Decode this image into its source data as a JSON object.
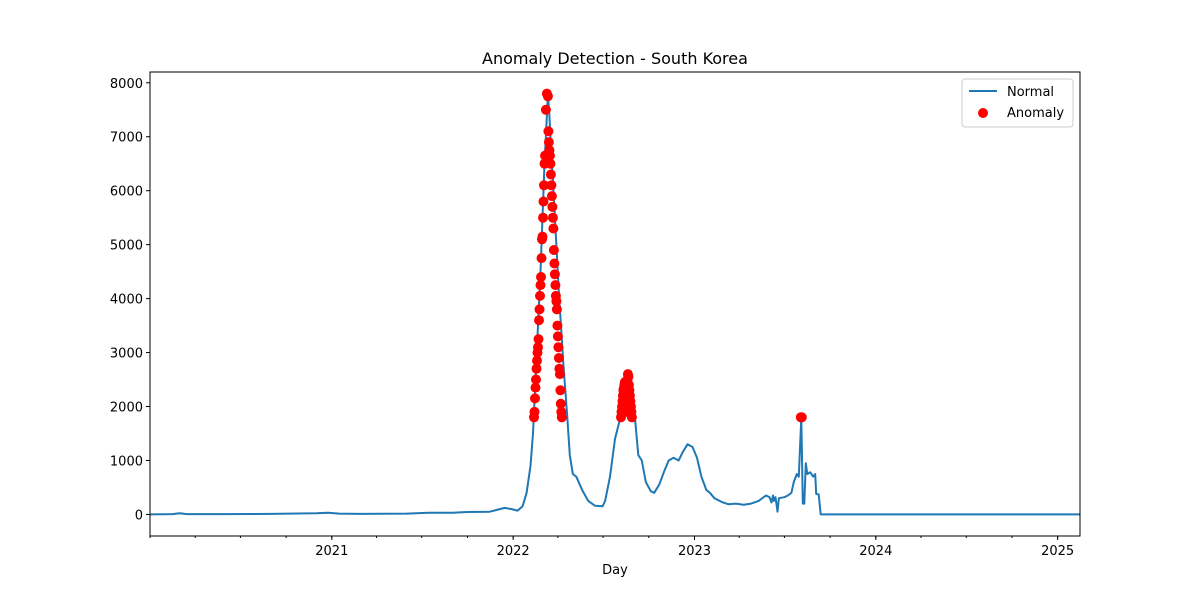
{
  "chart_data": {
    "type": "line",
    "title": "Anomaly Detection - South Korea",
    "xlabel": "Day",
    "ylabel": "",
    "xlim": [
      "2020-01-01",
      "2025-02-15"
    ],
    "ylim": [
      -400,
      8200
    ],
    "yticks": [
      0,
      1000,
      2000,
      3000,
      4000,
      5000,
      6000,
      7000,
      8000
    ],
    "xticks": [
      {
        "date": "2021-01-01",
        "label": "2021"
      },
      {
        "date": "2022-01-01",
        "label": "2022"
      },
      {
        "date": "2023-01-01",
        "label": "2023"
      },
      {
        "date": "2024-01-01",
        "label": "2024"
      },
      {
        "date": "2025-01-01",
        "label": "2025"
      }
    ],
    "legend_position": "top-right",
    "colors": {
      "normal": "#1f77b4",
      "anomaly": "#ff0000"
    },
    "series": [
      {
        "name": "Normal",
        "kind": "line",
        "points": [
          [
            "2020-01-01",
            0
          ],
          [
            "2020-02-15",
            5
          ],
          [
            "2020-03-01",
            20
          ],
          [
            "2020-03-15",
            5
          ],
          [
            "2020-06-01",
            5
          ],
          [
            "2020-09-01",
            10
          ],
          [
            "2020-12-01",
            20
          ],
          [
            "2020-12-25",
            30
          ],
          [
            "2021-01-15",
            15
          ],
          [
            "2021-03-01",
            10
          ],
          [
            "2021-06-01",
            15
          ],
          [
            "2021-07-15",
            30
          ],
          [
            "2021-09-01",
            30
          ],
          [
            "2021-10-01",
            45
          ],
          [
            "2021-11-15",
            50
          ],
          [
            "2021-12-01",
            90
          ],
          [
            "2021-12-15",
            120
          ],
          [
            "2021-12-28",
            100
          ],
          [
            "2022-01-10",
            70
          ],
          [
            "2022-01-20",
            150
          ],
          [
            "2022-01-28",
            400
          ],
          [
            "2022-02-05",
            900
          ],
          [
            "2022-02-10",
            1500
          ],
          [
            "2022-02-15",
            2500
          ],
          [
            "2022-02-20",
            3500
          ],
          [
            "2022-02-25",
            4500
          ],
          [
            "2022-03-01",
            5500
          ],
          [
            "2022-03-05",
            6500
          ],
          [
            "2022-03-09",
            7200
          ],
          [
            "2022-03-12",
            7800
          ],
          [
            "2022-03-15",
            7400
          ],
          [
            "2022-03-18",
            6800
          ],
          [
            "2022-03-22",
            6200
          ],
          [
            "2022-03-26",
            5500
          ],
          [
            "2022-03-30",
            4800
          ],
          [
            "2022-04-03",
            4100
          ],
          [
            "2022-04-08",
            3400
          ],
          [
            "2022-04-12",
            2800
          ],
          [
            "2022-04-16",
            2300
          ],
          [
            "2022-04-20",
            1800
          ],
          [
            "2022-04-25",
            1100
          ],
          [
            "2022-05-01",
            750
          ],
          [
            "2022-05-08",
            700
          ],
          [
            "2022-05-20",
            450
          ],
          [
            "2022-06-01",
            250
          ],
          [
            "2022-06-15",
            160
          ],
          [
            "2022-06-30",
            150
          ],
          [
            "2022-07-05",
            250
          ],
          [
            "2022-07-15",
            700
          ],
          [
            "2022-07-25",
            1400
          ],
          [
            "2022-08-05",
            1800
          ],
          [
            "2022-08-12",
            2200
          ],
          [
            "2022-08-18",
            2450
          ],
          [
            "2022-08-22",
            2500
          ],
          [
            "2022-08-28",
            2200
          ],
          [
            "2022-09-03",
            1800
          ],
          [
            "2022-09-10",
            1100
          ],
          [
            "2022-09-17",
            1000
          ],
          [
            "2022-09-25",
            600
          ],
          [
            "2022-10-05",
            430
          ],
          [
            "2022-10-12",
            400
          ],
          [
            "2022-10-22",
            550
          ],
          [
            "2022-11-01",
            800
          ],
          [
            "2022-11-10",
            1000
          ],
          [
            "2022-11-20",
            1050
          ],
          [
            "2022-11-30",
            1000
          ],
          [
            "2022-12-08",
            1150
          ],
          [
            "2022-12-18",
            1300
          ],
          [
            "2022-12-28",
            1250
          ],
          [
            "2023-01-06",
            1050
          ],
          [
            "2023-01-15",
            700
          ],
          [
            "2023-01-25",
            450
          ],
          [
            "2023-02-01",
            400
          ],
          [
            "2023-02-10",
            300
          ],
          [
            "2023-02-25",
            230
          ],
          [
            "2023-03-10",
            190
          ],
          [
            "2023-03-25",
            200
          ],
          [
            "2023-04-10",
            180
          ],
          [
            "2023-04-25",
            200
          ],
          [
            "2023-05-10",
            250
          ],
          [
            "2023-05-25",
            350
          ],
          [
            "2023-06-01",
            320
          ],
          [
            "2023-06-05",
            220
          ],
          [
            "2023-06-08",
            350
          ],
          [
            "2023-06-10",
            250
          ],
          [
            "2023-06-13",
            320
          ],
          [
            "2023-06-17",
            50
          ],
          [
            "2023-06-20",
            300
          ],
          [
            "2023-07-01",
            320
          ],
          [
            "2023-07-08",
            350
          ],
          [
            "2023-07-15",
            400
          ],
          [
            "2023-07-20",
            600
          ],
          [
            "2023-07-26",
            750
          ],
          [
            "2023-07-30",
            700
          ],
          [
            "2023-08-04",
            1800
          ],
          [
            "2023-08-07",
            200
          ],
          [
            "2023-08-10",
            200
          ],
          [
            "2023-08-13",
            950
          ],
          [
            "2023-08-16",
            750
          ],
          [
            "2023-08-22",
            780
          ],
          [
            "2023-08-28",
            700
          ],
          [
            "2023-09-01",
            750
          ],
          [
            "2023-09-03",
            380
          ],
          [
            "2023-09-08",
            370
          ],
          [
            "2023-09-12",
            0
          ],
          [
            "2024-01-01",
            0
          ],
          [
            "2025-02-15",
            0
          ]
        ]
      },
      {
        "name": "Anomaly",
        "kind": "scatter",
        "points": [
          [
            "2022-02-12",
            1800
          ],
          [
            "2022-02-13",
            1900
          ],
          [
            "2022-02-14",
            2150
          ],
          [
            "2022-02-15",
            2350
          ],
          [
            "2022-02-16",
            2500
          ],
          [
            "2022-02-17",
            2700
          ],
          [
            "2022-02-18",
            2850
          ],
          [
            "2022-02-19",
            3000
          ],
          [
            "2022-02-20",
            3100
          ],
          [
            "2022-02-21",
            3250
          ],
          [
            "2022-02-22",
            3600
          ],
          [
            "2022-02-23",
            3800
          ],
          [
            "2022-02-24",
            4050
          ],
          [
            "2022-02-25",
            4250
          ],
          [
            "2022-02-26",
            4400
          ],
          [
            "2022-02-27",
            4750
          ],
          [
            "2022-02-28",
            5100
          ],
          [
            "2022-03-01",
            5150
          ],
          [
            "2022-03-02",
            5500
          ],
          [
            "2022-03-03",
            5800
          ],
          [
            "2022-03-04",
            6100
          ],
          [
            "2022-03-05",
            6500
          ],
          [
            "2022-03-06",
            6650
          ],
          [
            "2022-03-08",
            7500
          ],
          [
            "2022-03-10",
            7800
          ],
          [
            "2022-03-12",
            7750
          ],
          [
            "2022-03-13",
            7100
          ],
          [
            "2022-03-14",
            6900
          ],
          [
            "2022-03-15",
            6750
          ],
          [
            "2022-03-16",
            6650
          ],
          [
            "2022-03-17",
            6500
          ],
          [
            "2022-03-18",
            6300
          ],
          [
            "2022-03-19",
            6100
          ],
          [
            "2022-03-20",
            5900
          ],
          [
            "2022-03-21",
            5700
          ],
          [
            "2022-03-22",
            5500
          ],
          [
            "2022-03-23",
            5300
          ],
          [
            "2022-03-24",
            4900
          ],
          [
            "2022-03-25",
            4650
          ],
          [
            "2022-03-26",
            4450
          ],
          [
            "2022-03-27",
            4250
          ],
          [
            "2022-03-28",
            4050
          ],
          [
            "2022-03-29",
            3950
          ],
          [
            "2022-03-30",
            3800
          ],
          [
            "2022-03-31",
            3500
          ],
          [
            "2022-04-01",
            3300
          ],
          [
            "2022-04-02",
            3100
          ],
          [
            "2022-04-03",
            2900
          ],
          [
            "2022-04-04",
            2700
          ],
          [
            "2022-04-05",
            2600
          ],
          [
            "2022-04-06",
            2300
          ],
          [
            "2022-04-07",
            2050
          ],
          [
            "2022-04-08",
            1900
          ],
          [
            "2022-04-09",
            1800
          ],
          [
            "2022-08-06",
            1800
          ],
          [
            "2022-08-07",
            1900
          ],
          [
            "2022-08-08",
            2000
          ],
          [
            "2022-08-09",
            2100
          ],
          [
            "2022-08-10",
            2200
          ],
          [
            "2022-08-11",
            2300
          ],
          [
            "2022-08-12",
            2350
          ],
          [
            "2022-08-13",
            2400
          ],
          [
            "2022-08-14",
            2450
          ],
          [
            "2022-08-15",
            2200
          ],
          [
            "2022-08-16",
            2050
          ],
          [
            "2022-08-17",
            1900
          ],
          [
            "2022-08-18",
            2300
          ],
          [
            "2022-08-19",
            2500
          ],
          [
            "2022-08-20",
            2600
          ],
          [
            "2022-08-21",
            2550
          ],
          [
            "2022-08-22",
            2400
          ],
          [
            "2022-08-23",
            2300
          ],
          [
            "2022-08-24",
            2200
          ],
          [
            "2022-08-25",
            2100
          ],
          [
            "2022-08-26",
            2000
          ],
          [
            "2022-08-27",
            1900
          ],
          [
            "2022-08-28",
            1800
          ],
          [
            "2023-08-03",
            1800
          ],
          [
            "2023-08-05",
            1800
          ]
        ]
      }
    ]
  }
}
